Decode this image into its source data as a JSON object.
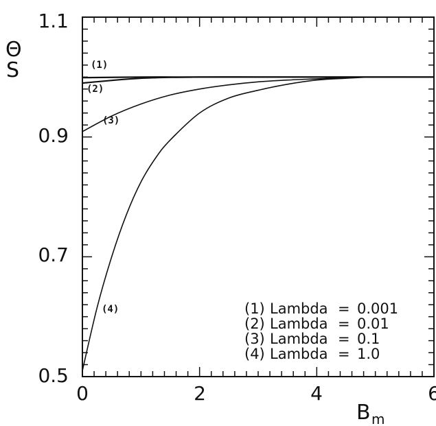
{
  "chart_data": {
    "type": "line",
    "xlabel": "B",
    "xlabel_sub": "m",
    "ylabel": "Θ",
    "ylabel_sub": "S",
    "xlim": [
      0,
      6
    ],
    "ylim": [
      0.5,
      1.1
    ],
    "x_ticks": [
      "0",
      "2",
      "4",
      "6"
    ],
    "y_ticks": [
      "0.5",
      "0.7",
      "0.9",
      "1.1"
    ],
    "grid": false,
    "legend_position": "bottom-right",
    "legend": [
      {
        "tag": "(1)",
        "text": "Lambda",
        "eq": "=",
        "value": "0.001"
      },
      {
        "tag": "(2)",
        "text": "Lambda",
        "eq": "=",
        "value": "0.01"
      },
      {
        "tag": "(3)",
        "text": "Lambda",
        "eq": "=",
        "value": "0.1"
      },
      {
        "tag": "(4)",
        "text": "Lambda",
        "eq": "=",
        "value": "1.0"
      }
    ],
    "series": [
      {
        "tag": "(1)",
        "x": [
          0,
          1,
          2,
          3,
          4,
          5,
          6
        ],
        "y": [
          0.999,
          1.0,
          1.0,
          1.0,
          1.0,
          1.0,
          1.0
        ]
      },
      {
        "tag": "(2)",
        "x": [
          0,
          1,
          2,
          3,
          4,
          5,
          6
        ],
        "y": [
          0.99,
          0.998,
          1.0,
          1.0,
          1.0,
          1.0,
          1.0
        ]
      },
      {
        "tag": "(3)",
        "x": [
          0,
          0.5,
          1,
          1.5,
          2,
          2.5,
          3,
          3.5,
          4,
          4.5,
          5,
          6
        ],
        "y": [
          0.909,
          0.935,
          0.955,
          0.97,
          0.98,
          0.987,
          0.992,
          0.995,
          0.997,
          0.999,
          1.0,
          1.0
        ]
      },
      {
        "tag": "(4)",
        "x": [
          0,
          0.25,
          0.5,
          0.75,
          1,
          1.25,
          1.5,
          2,
          2.5,
          3,
          3.5,
          4,
          4.5,
          5,
          6
        ],
        "y": [
          0.51,
          0.615,
          0.7,
          0.77,
          0.825,
          0.865,
          0.895,
          0.94,
          0.965,
          0.978,
          0.988,
          0.995,
          0.998,
          1.0,
          1.0
        ]
      }
    ]
  }
}
